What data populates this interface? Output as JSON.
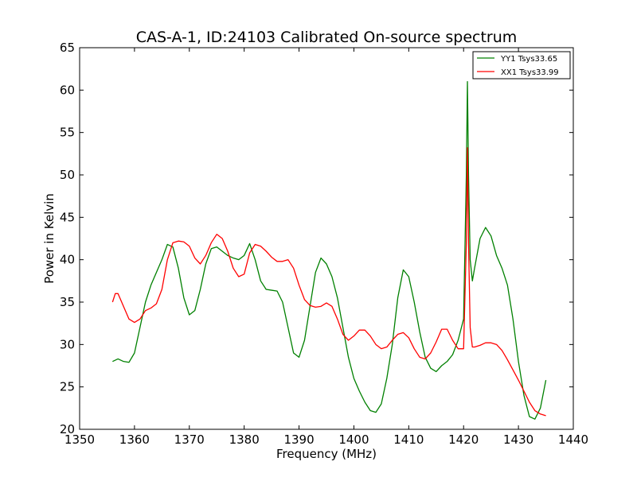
{
  "chart_data": {
    "type": "line",
    "title": "CAS-A-1, ID:24103 Calibrated On-source spectrum",
    "xlabel": "Frequency (MHz)",
    "ylabel": "Power in Kelvin",
    "xlim": [
      1350,
      1440
    ],
    "ylim": [
      20,
      65
    ],
    "xticks": [
      "1350",
      "1360",
      "1370",
      "1380",
      "1390",
      "1400",
      "1410",
      "1420",
      "1430",
      "1440"
    ],
    "yticks": [
      "20",
      "25",
      "30",
      "35",
      "40",
      "45",
      "50",
      "55",
      "60",
      "65"
    ],
    "grid": false,
    "legend_position": "top-right",
    "series": [
      {
        "name": "YY1 Tsys33.65",
        "color": "#008000",
        "points": [
          [
            1356,
            28.0
          ],
          [
            1357,
            28.3
          ],
          [
            1358,
            28.0
          ],
          [
            1359,
            27.9
          ],
          [
            1360,
            29.0
          ],
          [
            1361,
            32.0
          ],
          [
            1362,
            35.0
          ],
          [
            1363,
            37.0
          ],
          [
            1364,
            38.5
          ],
          [
            1365,
            40.0
          ],
          [
            1366,
            41.8
          ],
          [
            1367,
            41.5
          ],
          [
            1368,
            39.0
          ],
          [
            1369,
            35.5
          ],
          [
            1370,
            33.5
          ],
          [
            1371,
            34.0
          ],
          [
            1372,
            36.5
          ],
          [
            1373,
            39.5
          ],
          [
            1374,
            41.3
          ],
          [
            1375,
            41.5
          ],
          [
            1376,
            41.0
          ],
          [
            1377,
            40.5
          ],
          [
            1378,
            40.2
          ],
          [
            1379,
            40.0
          ],
          [
            1380,
            40.5
          ],
          [
            1381,
            41.9
          ],
          [
            1382,
            40.0
          ],
          [
            1383,
            37.5
          ],
          [
            1384,
            36.5
          ],
          [
            1385,
            36.4
          ],
          [
            1386,
            36.3
          ],
          [
            1387,
            35.0
          ],
          [
            1388,
            32.0
          ],
          [
            1389,
            29.0
          ],
          [
            1390,
            28.5
          ],
          [
            1391,
            30.5
          ],
          [
            1392,
            34.5
          ],
          [
            1393,
            38.5
          ],
          [
            1394,
            40.2
          ],
          [
            1395,
            39.5
          ],
          [
            1396,
            38.0
          ],
          [
            1397,
            35.5
          ],
          [
            1398,
            32.0
          ],
          [
            1399,
            28.5
          ],
          [
            1400,
            26.0
          ],
          [
            1401,
            24.5
          ],
          [
            1402,
            23.2
          ],
          [
            1403,
            22.2
          ],
          [
            1404,
            22.0
          ],
          [
            1405,
            23.0
          ],
          [
            1406,
            26.0
          ],
          [
            1407,
            30.0
          ],
          [
            1408,
            35.5
          ],
          [
            1409,
            38.8
          ],
          [
            1410,
            38.0
          ],
          [
            1411,
            35.0
          ],
          [
            1412,
            31.5
          ],
          [
            1413,
            28.5
          ],
          [
            1414,
            27.2
          ],
          [
            1415,
            26.8
          ],
          [
            1416,
            27.5
          ],
          [
            1417,
            28.0
          ],
          [
            1418,
            28.8
          ],
          [
            1419,
            30.5
          ],
          [
            1420,
            33.0
          ],
          [
            1420.5,
            50.0
          ],
          [
            1420.7,
            61.0
          ],
          [
            1420.9,
            50.0
          ],
          [
            1421.2,
            40.0
          ],
          [
            1421.6,
            37.5
          ],
          [
            1422,
            39.0
          ],
          [
            1423,
            42.5
          ],
          [
            1424,
            43.8
          ],
          [
            1425,
            42.8
          ],
          [
            1426,
            40.5
          ],
          [
            1427,
            39.0
          ],
          [
            1428,
            37.0
          ],
          [
            1429,
            33.0
          ],
          [
            1430,
            28.0
          ],
          [
            1431,
            24.0
          ],
          [
            1432,
            21.5
          ],
          [
            1433,
            21.2
          ],
          [
            1434,
            22.5
          ],
          [
            1435,
            25.8
          ]
        ]
      },
      {
        "name": "XX1 Tsys33.99",
        "color": "#ff0000",
        "points": [
          [
            1356,
            35.0
          ],
          [
            1356.5,
            36.0
          ],
          [
            1357,
            36.0
          ],
          [
            1358,
            34.5
          ],
          [
            1359,
            33.0
          ],
          [
            1360,
            32.6
          ],
          [
            1361,
            33.0
          ],
          [
            1362,
            34.0
          ],
          [
            1363,
            34.3
          ],
          [
            1364,
            34.8
          ],
          [
            1365,
            36.5
          ],
          [
            1366,
            40.0
          ],
          [
            1367,
            42.0
          ],
          [
            1368,
            42.2
          ],
          [
            1369,
            42.1
          ],
          [
            1370,
            41.6
          ],
          [
            1371,
            40.2
          ],
          [
            1372,
            39.5
          ],
          [
            1373,
            40.5
          ],
          [
            1374,
            42.0
          ],
          [
            1375,
            43.0
          ],
          [
            1376,
            42.5
          ],
          [
            1377,
            41.0
          ],
          [
            1378,
            39.0
          ],
          [
            1379,
            38.0
          ],
          [
            1380,
            38.3
          ],
          [
            1381,
            40.8
          ],
          [
            1382,
            41.8
          ],
          [
            1383,
            41.6
          ],
          [
            1384,
            41.0
          ],
          [
            1385,
            40.3
          ],
          [
            1386,
            39.8
          ],
          [
            1387,
            39.8
          ],
          [
            1388,
            40.0
          ],
          [
            1389,
            39.0
          ],
          [
            1390,
            37.0
          ],
          [
            1391,
            35.3
          ],
          [
            1392,
            34.6
          ],
          [
            1393,
            34.4
          ],
          [
            1394,
            34.5
          ],
          [
            1395,
            34.9
          ],
          [
            1396,
            34.5
          ],
          [
            1397,
            33.0
          ],
          [
            1398,
            31.2
          ],
          [
            1399,
            30.5
          ],
          [
            1400,
            31.0
          ],
          [
            1401,
            31.7
          ],
          [
            1402,
            31.7
          ],
          [
            1403,
            31.0
          ],
          [
            1404,
            30.0
          ],
          [
            1405,
            29.5
          ],
          [
            1406,
            29.7
          ],
          [
            1407,
            30.5
          ],
          [
            1408,
            31.2
          ],
          [
            1409,
            31.4
          ],
          [
            1410,
            30.8
          ],
          [
            1411,
            29.5
          ],
          [
            1412,
            28.5
          ],
          [
            1413,
            28.3
          ],
          [
            1414,
            29.0
          ],
          [
            1415,
            30.3
          ],
          [
            1416,
            31.8
          ],
          [
            1417,
            31.8
          ],
          [
            1418,
            30.5
          ],
          [
            1419,
            29.5
          ],
          [
            1420,
            29.5
          ],
          [
            1420.5,
            42.0
          ],
          [
            1420.7,
            53.2
          ],
          [
            1420.9,
            42.0
          ],
          [
            1421.2,
            32.0
          ],
          [
            1421.6,
            29.7
          ],
          [
            1422,
            29.7
          ],
          [
            1423,
            29.9
          ],
          [
            1424,
            30.2
          ],
          [
            1425,
            30.2
          ],
          [
            1426,
            30.0
          ],
          [
            1427,
            29.3
          ],
          [
            1428,
            28.2
          ],
          [
            1429,
            27.0
          ],
          [
            1430,
            25.8
          ],
          [
            1431,
            24.5
          ],
          [
            1432,
            23.2
          ],
          [
            1433,
            22.2
          ],
          [
            1434,
            21.8
          ],
          [
            1435,
            21.6
          ]
        ]
      }
    ]
  }
}
